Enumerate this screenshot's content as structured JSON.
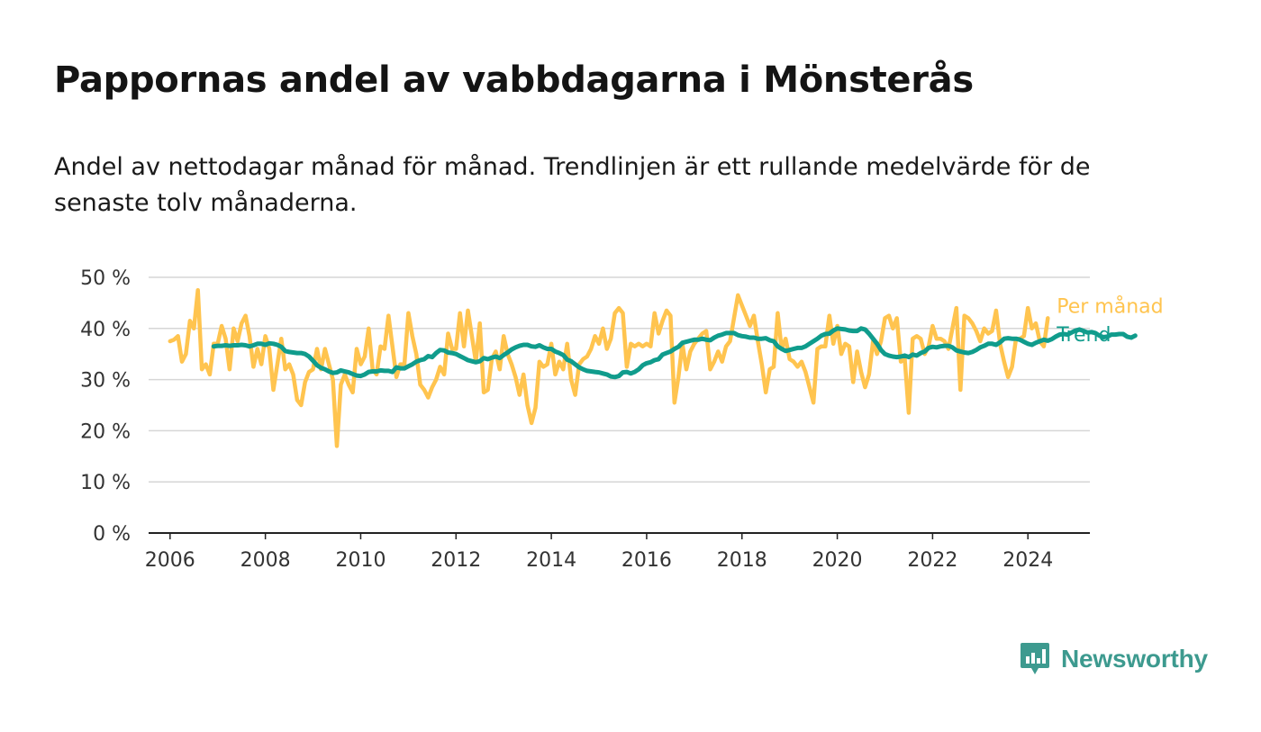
{
  "title": "Pappornas andel av vabbdagarna i Mönsterås",
  "subtitle": "Andel av nettodagar månad för månad. Trendlinjen är ett rullande medelvärde för de senaste tolv månaderna.",
  "brand": {
    "name": "Newsworthy",
    "icon": "newsworthy-logo-icon",
    "color": "#3d9a8f"
  },
  "chart_data": {
    "type": "line",
    "title": "Pappornas andel av vabbdagarna i Mönsterås",
    "xlabel": "",
    "ylabel": "",
    "xlim": [
      2005.55,
      2025.3
    ],
    "ylim": [
      0,
      50
    ],
    "yticks": [
      0,
      10,
      20,
      30,
      40,
      50
    ],
    "ytick_labels": [
      "0 %",
      "10 %",
      "20 %",
      "30 %",
      "40 %",
      "50 %"
    ],
    "xticks": [
      2006,
      2008,
      2010,
      2012,
      2014,
      2016,
      2018,
      2020,
      2022,
      2024
    ],
    "xtick_labels": [
      "2006",
      "2008",
      "2010",
      "2012",
      "2014",
      "2016",
      "2018",
      "2020",
      "2022",
      "2024"
    ],
    "grid": true,
    "legend": "end-of-line labels",
    "series": [
      {
        "name": "Per månad",
        "color": "#ffc44f",
        "start": 2006.0,
        "step": 0.0833333,
        "values": [
          37.5,
          37.8,
          38.5,
          33.5,
          35.0,
          41.5,
          40.0,
          47.5,
          32.0,
          33.0,
          31.0,
          37.0,
          37.0,
          40.5,
          38.0,
          32.0,
          40.0,
          37.5,
          41.0,
          42.5,
          38.5,
          32.5,
          36.0,
          33.0,
          38.5,
          36.0,
          28.0,
          33.0,
          38.0,
          32.0,
          33.0,
          31.0,
          26.0,
          25.0,
          29.5,
          31.5,
          32.0,
          36.0,
          32.0,
          36.0,
          33.0,
          30.0,
          17.0,
          29.0,
          31.0,
          29.0,
          27.5,
          36.0,
          33.0,
          34.5,
          40.0,
          32.0,
          31.0,
          36.5,
          36.0,
          42.5,
          36.5,
          30.5,
          33.0,
          33.0,
          43.0,
          38.5,
          35.0,
          29.0,
          28.0,
          26.5,
          28.5,
          30.0,
          32.5,
          31.0,
          39.0,
          36.0,
          36.0,
          43.0,
          36.5,
          43.5,
          38.5,
          33.5,
          41.0,
          27.5,
          28.0,
          34.0,
          35.5,
          32.0,
          38.5,
          35.0,
          33.0,
          30.5,
          27.0,
          31.0,
          25.0,
          21.5,
          24.5,
          33.5,
          32.5,
          33.0,
          37.0,
          31.0,
          33.5,
          32.0,
          37.0,
          30.0,
          27.0,
          33.0,
          34.0,
          34.5,
          36.0,
          38.5,
          37.0,
          40.0,
          36.0,
          38.0,
          43.0,
          44.0,
          43.0,
          32.5,
          37.0,
          36.5,
          37.0,
          36.5,
          37.0,
          36.5,
          43.0,
          39.0,
          41.5,
          43.5,
          42.5,
          25.5,
          30.5,
          37.0,
          32.0,
          35.5,
          37.0,
          38.0,
          39.0,
          39.5,
          32.0,
          33.5,
          35.5,
          33.5,
          36.5,
          37.5,
          42.0,
          46.5,
          44.5,
          42.5,
          40.5,
          42.5,
          37.5,
          33.0,
          27.5,
          32.0,
          32.5,
          43.0,
          36.0,
          38.0,
          34.0,
          33.5,
          32.5,
          33.5,
          31.5,
          28.5,
          25.5,
          36.0,
          36.5,
          36.5,
          42.5,
          37.0,
          40.5,
          35.0,
          37.0,
          36.5,
          29.5,
          35.5,
          31.5,
          28.5,
          31.0,
          37.5,
          35.0,
          37.5,
          42.0,
          42.5,
          40.0,
          42.0,
          33.5,
          34.0,
          23.5,
          38.0,
          38.5,
          38.0,
          35.0,
          36.5,
          40.5,
          38.0,
          38.0,
          37.5,
          36.0,
          40.0,
          44.0,
          28.0,
          42.5,
          42.0,
          41.0,
          39.5,
          37.5,
          40.0,
          39.0,
          39.5,
          43.5,
          37.0,
          33.5,
          30.5,
          32.5,
          38.0,
          38.0,
          38.5,
          44.0,
          40.0,
          41.0,
          37.5,
          36.5,
          42.0
        ]
      },
      {
        "name": "Trend",
        "color": "#109c8c",
        "start": 2006.9167,
        "step": 0.0833333,
        "values": [
          36.5,
          36.6,
          36.6,
          36.7,
          36.6,
          36.7,
          36.7,
          36.8,
          36.7,
          36.5,
          36.7,
          37.0,
          37.0,
          36.8,
          37.1,
          37.0,
          36.8,
          36.4,
          35.6,
          35.4,
          35.3,
          35.2,
          35.2,
          35.0,
          34.5,
          33.7,
          32.8,
          32.3,
          32.0,
          31.6,
          31.3,
          31.4,
          31.8,
          31.6,
          31.4,
          31.1,
          30.8,
          30.7,
          31.0,
          31.5,
          31.6,
          31.6,
          31.8,
          31.7,
          31.7,
          31.5,
          32.4,
          32.2,
          32.2,
          32.6,
          33.0,
          33.5,
          33.8,
          34.0,
          34.6,
          34.4,
          35.2,
          35.8,
          35.7,
          35.3,
          35.2,
          35.0,
          34.6,
          34.2,
          33.8,
          33.6,
          33.4,
          33.6,
          34.2,
          34.0,
          34.3,
          34.5,
          34.2,
          34.8,
          35.3,
          35.9,
          36.3,
          36.6,
          36.8,
          36.8,
          36.5,
          36.4,
          36.7,
          36.3,
          36.0,
          36.0,
          35.5,
          35.2,
          34.8,
          33.9,
          33.6,
          33.0,
          32.4,
          32.0,
          31.7,
          31.6,
          31.5,
          31.4,
          31.2,
          31.0,
          30.6,
          30.5,
          30.7,
          31.4,
          31.5,
          31.2,
          31.5,
          32.0,
          32.8,
          33.2,
          33.4,
          33.8,
          34.0,
          34.9,
          35.2,
          35.5,
          36.0,
          36.4,
          37.2,
          37.4,
          37.6,
          37.8,
          37.8,
          38.0,
          37.8,
          37.7,
          38.2,
          38.6,
          38.8,
          39.1,
          39.1,
          39.1,
          38.7,
          38.5,
          38.4,
          38.2,
          38.2,
          38.0,
          38.0,
          38.1,
          37.7,
          37.5,
          36.5,
          36.0,
          35.6,
          35.8,
          36.0,
          36.2,
          36.2,
          36.5,
          37.0,
          37.5,
          38.0,
          38.6,
          38.9,
          39.0,
          39.6,
          40.0,
          39.9,
          39.8,
          39.6,
          39.5,
          39.5,
          40.0,
          39.8,
          39.0,
          38.0,
          37.0,
          35.8,
          35.0,
          34.7,
          34.5,
          34.4,
          34.5,
          34.7,
          34.4,
          34.9,
          34.7,
          35.2,
          35.5,
          36.2,
          36.4,
          36.3,
          36.5,
          36.6,
          36.6,
          36.3,
          35.7,
          35.5,
          35.3,
          35.2,
          35.4,
          35.8,
          36.3,
          36.6,
          37.0,
          37.0,
          36.8,
          37.3,
          38.0,
          38.1,
          38.0,
          38.0,
          37.8,
          37.4,
          37.0,
          36.8,
          37.2,
          37.5,
          37.8,
          37.6,
          37.9,
          38.4,
          38.8,
          38.9,
          38.8,
          39.2,
          39.6,
          39.8,
          39.5,
          39.2,
          39.3,
          39.1,
          38.6,
          38.3,
          38.4,
          38.8,
          38.8,
          38.9,
          38.9,
          38.4,
          38.2,
          38.6
        ]
      }
    ]
  }
}
